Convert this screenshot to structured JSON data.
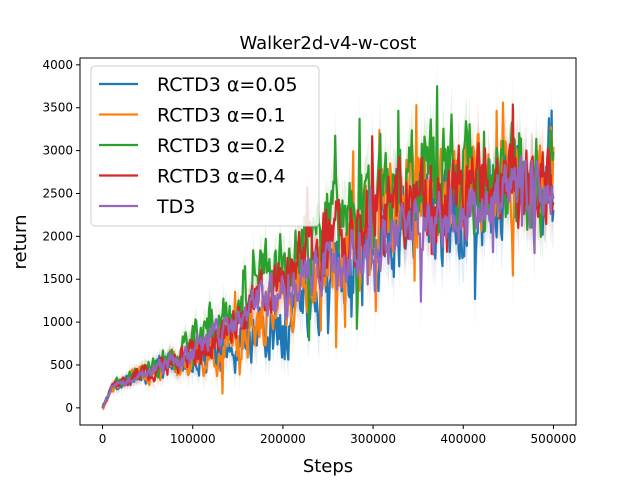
{
  "chart_data": {
    "type": "line",
    "title": "Walker2d-v4-w-cost",
    "xlabel": "Steps",
    "ylabel": "return",
    "xlim": [
      -25000,
      525000
    ],
    "ylim": [
      -200,
      4080
    ],
    "xticks": [
      0,
      100000,
      200000,
      300000,
      400000,
      500000
    ],
    "xtick_labels": [
      "0",
      "100000",
      "200000",
      "300000",
      "400000",
      "500000"
    ],
    "yticks": [
      0,
      500,
      1000,
      1500,
      2000,
      2500,
      3000,
      3500,
      4000
    ],
    "ytick_labels": [
      "0",
      "500",
      "1000",
      "1500",
      "2000",
      "2500",
      "3000",
      "3500",
      "4000"
    ],
    "grid": false,
    "legend_position": "upper-left",
    "x_start": 0,
    "x_end": 500000,
    "series": [
      {
        "name": "RCTD3 α=0.05",
        "label_prefix": "RCTD3 ",
        "label_param": "α=0.05",
        "color": "#1f77b4",
        "anchors": [
          [
            0,
            0
          ],
          [
            10000,
            220
          ],
          [
            30000,
            330
          ],
          [
            60000,
            440
          ],
          [
            100000,
            570
          ],
          [
            150000,
            720
          ],
          [
            200000,
            1000
          ],
          [
            250000,
            1500
          ],
          [
            300000,
            1950
          ],
          [
            350000,
            2150
          ],
          [
            400000,
            2350
          ],
          [
            450000,
            2500
          ],
          [
            500000,
            2600
          ]
        ],
        "noise": 430,
        "spike_prob": 0.06,
        "spike_size": 900,
        "seed": 11
      },
      {
        "name": "RCTD3 α=0.1",
        "label_prefix": "RCTD3 ",
        "label_param": "α=0.1",
        "color": "#ff7f0e",
        "anchors": [
          [
            0,
            0
          ],
          [
            10000,
            220
          ],
          [
            30000,
            330
          ],
          [
            60000,
            440
          ],
          [
            100000,
            580
          ],
          [
            150000,
            800
          ],
          [
            200000,
            1150
          ],
          [
            250000,
            1700
          ],
          [
            300000,
            2150
          ],
          [
            350000,
            2400
          ],
          [
            400000,
            2600
          ],
          [
            450000,
            2650
          ],
          [
            500000,
            2600
          ]
        ],
        "noise": 450,
        "spike_prob": 0.06,
        "spike_size": 900,
        "seed": 23
      },
      {
        "name": "RCTD3 α=0.2",
        "label_prefix": "RCTD3 ",
        "label_param": "α=0.2",
        "color": "#2ca02c",
        "anchors": [
          [
            0,
            0
          ],
          [
            10000,
            240
          ],
          [
            30000,
            350
          ],
          [
            60000,
            480
          ],
          [
            100000,
            750
          ],
          [
            150000,
            1250
          ],
          [
            200000,
            1700
          ],
          [
            250000,
            2100
          ],
          [
            300000,
            2400
          ],
          [
            350000,
            2600
          ],
          [
            400000,
            2700
          ],
          [
            450000,
            2650
          ],
          [
            500000,
            2500
          ]
        ],
        "noise": 480,
        "spike_prob": 0.07,
        "spike_size": 950,
        "seed": 37
      },
      {
        "name": "RCTD3 α=0.4",
        "label_prefix": "RCTD3 ",
        "label_param": "α=0.4",
        "color": "#d62728",
        "anchors": [
          [
            0,
            0
          ],
          [
            10000,
            230
          ],
          [
            30000,
            340
          ],
          [
            60000,
            460
          ],
          [
            100000,
            650
          ],
          [
            150000,
            1050
          ],
          [
            200000,
            1550
          ],
          [
            250000,
            2000
          ],
          [
            300000,
            2300
          ],
          [
            350000,
            2450
          ],
          [
            400000,
            2550
          ],
          [
            450000,
            2600
          ],
          [
            500000,
            2500
          ]
        ],
        "noise": 380,
        "spike_prob": 0.05,
        "spike_size": 800,
        "seed": 53
      },
      {
        "name": "TD3",
        "label_prefix": "TD3",
        "label_param": "",
        "color": "#9467bd",
        "anchors": [
          [
            0,
            0
          ],
          [
            10000,
            230
          ],
          [
            30000,
            340
          ],
          [
            60000,
            450
          ],
          [
            100000,
            640
          ],
          [
            150000,
            1050
          ],
          [
            200000,
            1350
          ],
          [
            250000,
            1650
          ],
          [
            300000,
            1950
          ],
          [
            350000,
            2150
          ],
          [
            400000,
            2300
          ],
          [
            450000,
            2550
          ],
          [
            500000,
            2650
          ]
        ],
        "noise": 280,
        "spike_prob": 0.04,
        "spike_size": 600,
        "seed": 71
      }
    ]
  }
}
